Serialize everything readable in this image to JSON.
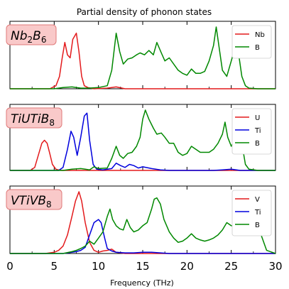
{
  "chart_data": {
    "type": "line",
    "title": "Partial density of phonon states",
    "xlabel": "Frequency (THz)",
    "ylabel": "",
    "xlim": [
      0,
      30
    ],
    "xticks": [
      "0",
      "5",
      "10",
      "15",
      "20",
      "25",
      "30"
    ],
    "legend_position": "top-right",
    "colors": {
      "red": "#e31a1c",
      "blue": "#0000dd",
      "green": "#008800"
    },
    "panels": [
      {
        "label_base": "Nb",
        "label_sub1": "2",
        "label_mid": "B",
        "label_sub2": "6",
        "series": [
          {
            "name": "Nb",
            "color": "#e31a1c",
            "x": [
              0,
              4.5,
              5.2,
              5.6,
              5.9,
              6.2,
              6.5,
              6.8,
              7.1,
              7.5,
              7.8,
              8.1,
              8.4,
              8.8,
              9.5,
              11,
              12,
              13,
              30
            ],
            "y": [
              0,
              0,
              0.05,
              0.2,
              0.5,
              0.75,
              0.55,
              0.5,
              0.8,
              0.9,
              0.6,
              0.2,
              0.05,
              0.02,
              0,
              0.01,
              0.03,
              0,
              0
            ]
          },
          {
            "name": "B",
            "color": "#008800",
            "x": [
              0,
              5,
              6,
              7,
              8,
              9,
              10,
              11,
              11.5,
              12,
              12.4,
              12.8,
              13.3,
              13.8,
              14.3,
              14.7,
              15.2,
              15.7,
              16.2,
              16.6,
              17.1,
              17.5,
              18,
              18.5,
              19,
              19.5,
              20,
              20.5,
              21,
              21.5,
              22,
              22.5,
              23,
              23.3,
              23.6,
              24,
              24.5,
              25,
              25.5,
              25.8,
              26.2,
              26.6,
              27,
              28,
              30
            ],
            "y": [
              0,
              0,
              0.02,
              0.03,
              0.01,
              0.01,
              0.02,
              0.05,
              0.3,
              0.9,
              0.6,
              0.4,
              0.48,
              0.5,
              0.55,
              0.58,
              0.55,
              0.62,
              0.55,
              0.75,
              0.58,
              0.45,
              0.5,
              0.4,
              0.3,
              0.25,
              0.22,
              0.32,
              0.25,
              0.25,
              0.28,
              0.45,
              0.7,
              1.0,
              0.7,
              0.3,
              0.2,
              0.45,
              0.7,
              0.6,
              0.2,
              0.05,
              0.01,
              0,
              0
            ]
          }
        ]
      },
      {
        "label_base": "TiUTiB",
        "label_sub1": "8",
        "label_mid": "",
        "label_sub2": "",
        "series": [
          {
            "name": "U",
            "color": "#e31a1c",
            "x": [
              0,
              2.3,
              2.8,
              3.2,
              3.6,
              3.9,
              4.2,
              4.5,
              4.8,
              5.2,
              5.6,
              6,
              30
            ],
            "y": [
              0,
              0,
              0.05,
              0.25,
              0.45,
              0.5,
              0.45,
              0.28,
              0.1,
              0.02,
              0.005,
              0,
              0
            ]
          },
          {
            "name": "Ti",
            "color": "#0000dd",
            "x": [
              0,
              5.5,
              6,
              6.5,
              6.9,
              7.2,
              7.6,
              8,
              8.4,
              8.7,
              9,
              9.4,
              9.8,
              10.5,
              11.5,
              12,
              12.5,
              13,
              13.5,
              14,
              14.5,
              15,
              16,
              17,
              18,
              20,
              23,
              24,
              25,
              26,
              30
            ],
            "y": [
              0,
              0,
              0.05,
              0.35,
              0.65,
              0.55,
              0.25,
              0.55,
              0.9,
              0.95,
              0.5,
              0.1,
              0.02,
              0.01,
              0.03,
              0.12,
              0.08,
              0.05,
              0.1,
              0.08,
              0.04,
              0.06,
              0.03,
              0.01,
              0,
              0,
              0,
              0.01,
              0.02,
              0,
              0
            ]
          },
          {
            "name": "B",
            "color": "#008800",
            "x": [
              0,
              6,
              7,
              8,
              8.5,
              9,
              9.5,
              10,
              11,
              11.5,
              12,
              12.4,
              12.8,
              13.3,
              13.8,
              14.3,
              14.7,
              15,
              15.3,
              15.7,
              16.2,
              16.6,
              17.1,
              17.5,
              18,
              18.5,
              19,
              19.5,
              20,
              20.5,
              21,
              21.5,
              22,
              22.5,
              23,
              23.5,
              24,
              24.3,
              24.6,
              25,
              25.5,
              25.8,
              26.2,
              26.6,
              27,
              28,
              30
            ],
            "y": [
              0,
              0,
              0.02,
              0.03,
              0.02,
              0.01,
              0.06,
              0.03,
              0.04,
              0.2,
              0.4,
              0.25,
              0.2,
              0.28,
              0.3,
              0.4,
              0.55,
              0.85,
              1.0,
              0.85,
              0.7,
              0.6,
              0.62,
              0.55,
              0.45,
              0.45,
              0.3,
              0.25,
              0.28,
              0.4,
              0.35,
              0.3,
              0.3,
              0.3,
              0.35,
              0.45,
              0.6,
              0.8,
              0.55,
              0.4,
              0.55,
              0.85,
              0.45,
              0.1,
              0.02,
              0,
              0
            ]
          }
        ]
      },
      {
        "label_base": "VTiVB",
        "label_sub1": "8",
        "label_mid": "",
        "label_sub2": "",
        "series": [
          {
            "name": "V",
            "color": "#e31a1c",
            "x": [
              0,
              4,
              5,
              5.5,
              6,
              6.5,
              7,
              7.4,
              7.8,
              8.1,
              8.5,
              9,
              9.5,
              10,
              10.5,
              11,
              11.5,
              12,
              13,
              30
            ],
            "y": [
              0,
              0,
              0.02,
              0.05,
              0.12,
              0.3,
              0.6,
              0.85,
              1.0,
              0.85,
              0.5,
              0.18,
              0.05,
              0.02,
              0.04,
              0.05,
              0.07,
              0.02,
              0,
              0
            ]
          },
          {
            "name": "Ti",
            "color": "#0000dd",
            "x": [
              0,
              6,
              7,
              7.5,
              8,
              8.5,
              9,
              9.5,
              10,
              10.3,
              10.7,
              11,
              11.5,
              12,
              13,
              14,
              15,
              16,
              17,
              18,
              30
            ],
            "y": [
              0,
              0,
              0.02,
              0.03,
              0.05,
              0.1,
              0.3,
              0.5,
              0.55,
              0.5,
              0.25,
              0.08,
              0.04,
              0.02,
              0.01,
              0.01,
              0.02,
              0.02,
              0.01,
              0,
              0
            ]
          },
          {
            "name": "B",
            "color": "#008800",
            "x": [
              0,
              6,
              7,
              7.5,
              8,
              8.5,
              9,
              9.5,
              10,
              10.5,
              11,
              11.3,
              11.6,
              12,
              12.4,
              12.8,
              13.2,
              13.6,
              14,
              14.5,
              15,
              15.5,
              16,
              16.3,
              16.6,
              17,
              17.4,
              18,
              18.5,
              19,
              19.5,
              20,
              20.5,
              21,
              21.5,
              22,
              22.5,
              23,
              23.5,
              24,
              24.5,
              25,
              25.5,
              26,
              26.5,
              27,
              27.5,
              28,
              28.5,
              29,
              30
            ],
            "y": [
              0,
              0,
              0.03,
              0.05,
              0.08,
              0.12,
              0.2,
              0.15,
              0.25,
              0.35,
              0.6,
              0.72,
              0.55,
              0.45,
              0.4,
              0.38,
              0.55,
              0.42,
              0.35,
              0.38,
              0.45,
              0.5,
              0.72,
              0.88,
              0.9,
              0.8,
              0.55,
              0.35,
              0.25,
              0.18,
              0.2,
              0.25,
              0.32,
              0.25,
              0.22,
              0.2,
              0.22,
              0.25,
              0.3,
              0.38,
              0.5,
              0.45,
              0.45,
              0.4,
              0.35,
              0.38,
              0.5,
              0.45,
              0.25,
              0.05,
              0
            ]
          }
        ]
      }
    ]
  }
}
